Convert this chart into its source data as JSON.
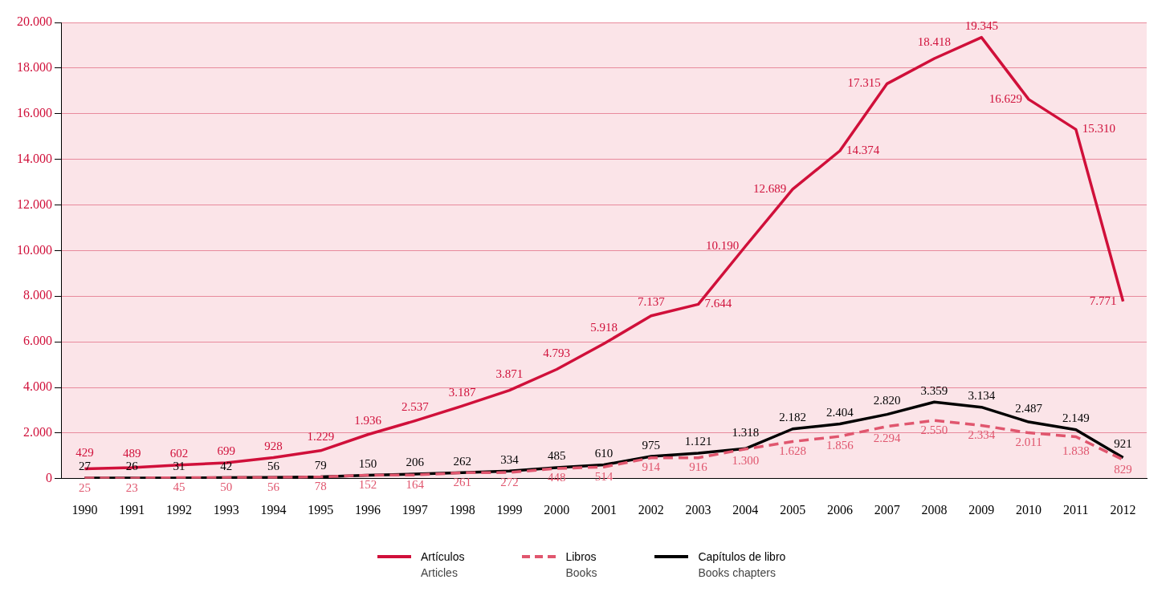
{
  "chart_data": {
    "type": "line",
    "categories": [
      "1990",
      "1991",
      "1992",
      "1993",
      "1994",
      "1995",
      "1996",
      "1997",
      "1998",
      "1999",
      "2000",
      "2001",
      "2002",
      "2003",
      "2004",
      "2005",
      "2006",
      "2007",
      "2008",
      "2009",
      "2010",
      "2011",
      "2012"
    ],
    "series": [
      {
        "name": "Artículos\nArticles",
        "color": "#d0103a",
        "line_style": "solid",
        "values": [
          429,
          489,
          602,
          699,
          928,
          1229,
          1936,
          2537,
          3187,
          3871,
          4793,
          5918,
          7137,
          7644,
          10190,
          12689,
          14374,
          17315,
          18418,
          19345,
          16629,
          15310,
          7771
        ],
        "value_labels": [
          "429",
          "489",
          "602",
          "699",
          "928",
          "1.229",
          "1.936",
          "2.537",
          "3.187",
          "3.871",
          "4.793",
          "5.918",
          "7.137",
          "7.644",
          "10.190",
          "12.689",
          "14.374",
          "17.315",
          "18.418",
          "19.345",
          "16.629",
          "15.310",
          "7.771"
        ]
      },
      {
        "name": "Libros\nBooks",
        "color": "#e0566e",
        "line_style": "dashed",
        "values": [
          25,
          23,
          45,
          50,
          56,
          78,
          152,
          164,
          261,
          272,
          448,
          514,
          914,
          916,
          1300,
          1628,
          1856,
          2294,
          2550,
          2334,
          2011,
          1838,
          829
        ],
        "value_labels": [
          "25",
          "23",
          "45",
          "50",
          "56",
          "78",
          "152",
          "164",
          "261",
          "272",
          "448",
          "514",
          "914",
          "916",
          "1.300",
          "1.628",
          "1.856",
          "2.294",
          "2.550",
          "2.334",
          "2.011",
          "1.838",
          "829"
        ]
      },
      {
        "name": "Capítulos de libro\nBooks chapters",
        "color": "#000000",
        "line_style": "solid",
        "values": [
          27,
          26,
          31,
          42,
          56,
          79,
          150,
          206,
          262,
          334,
          485,
          610,
          975,
          1121,
          1318,
          2182,
          2404,
          2820,
          3359,
          3134,
          2487,
          2149,
          921
        ],
        "value_labels": [
          "27",
          "26",
          "31",
          "42",
          "56",
          "79",
          "150",
          "206",
          "262",
          "334",
          "485",
          "610",
          "975",
          "1.121",
          "1.318",
          "2.182",
          "2.404",
          "2.820",
          "3.359",
          "3.134",
          "2.487",
          "2.149",
          "921"
        ]
      }
    ],
    "ylim": [
      0,
      20000
    ],
    "yticks": [
      0,
      {
        "value": 2000,
        "label": "2.000"
      },
      {
        "value": 4000,
        "label": "4.000"
      },
      {
        "value": 6000,
        "label": "6.000"
      },
      {
        "value": 8000,
        "label": "8.000"
      },
      {
        "value": 10000,
        "label": "10.000"
      },
      {
        "value": 12000,
        "label": "12.000"
      },
      {
        "value": 14000,
        "label": "14.000"
      },
      {
        "value": 16000,
        "label": "16.000"
      },
      {
        "value": 18000,
        "label": "18.000"
      },
      {
        "value": 20000,
        "label": "20.000"
      }
    ],
    "grid": "y",
    "legend": "bottom",
    "marker": "none"
  }
}
